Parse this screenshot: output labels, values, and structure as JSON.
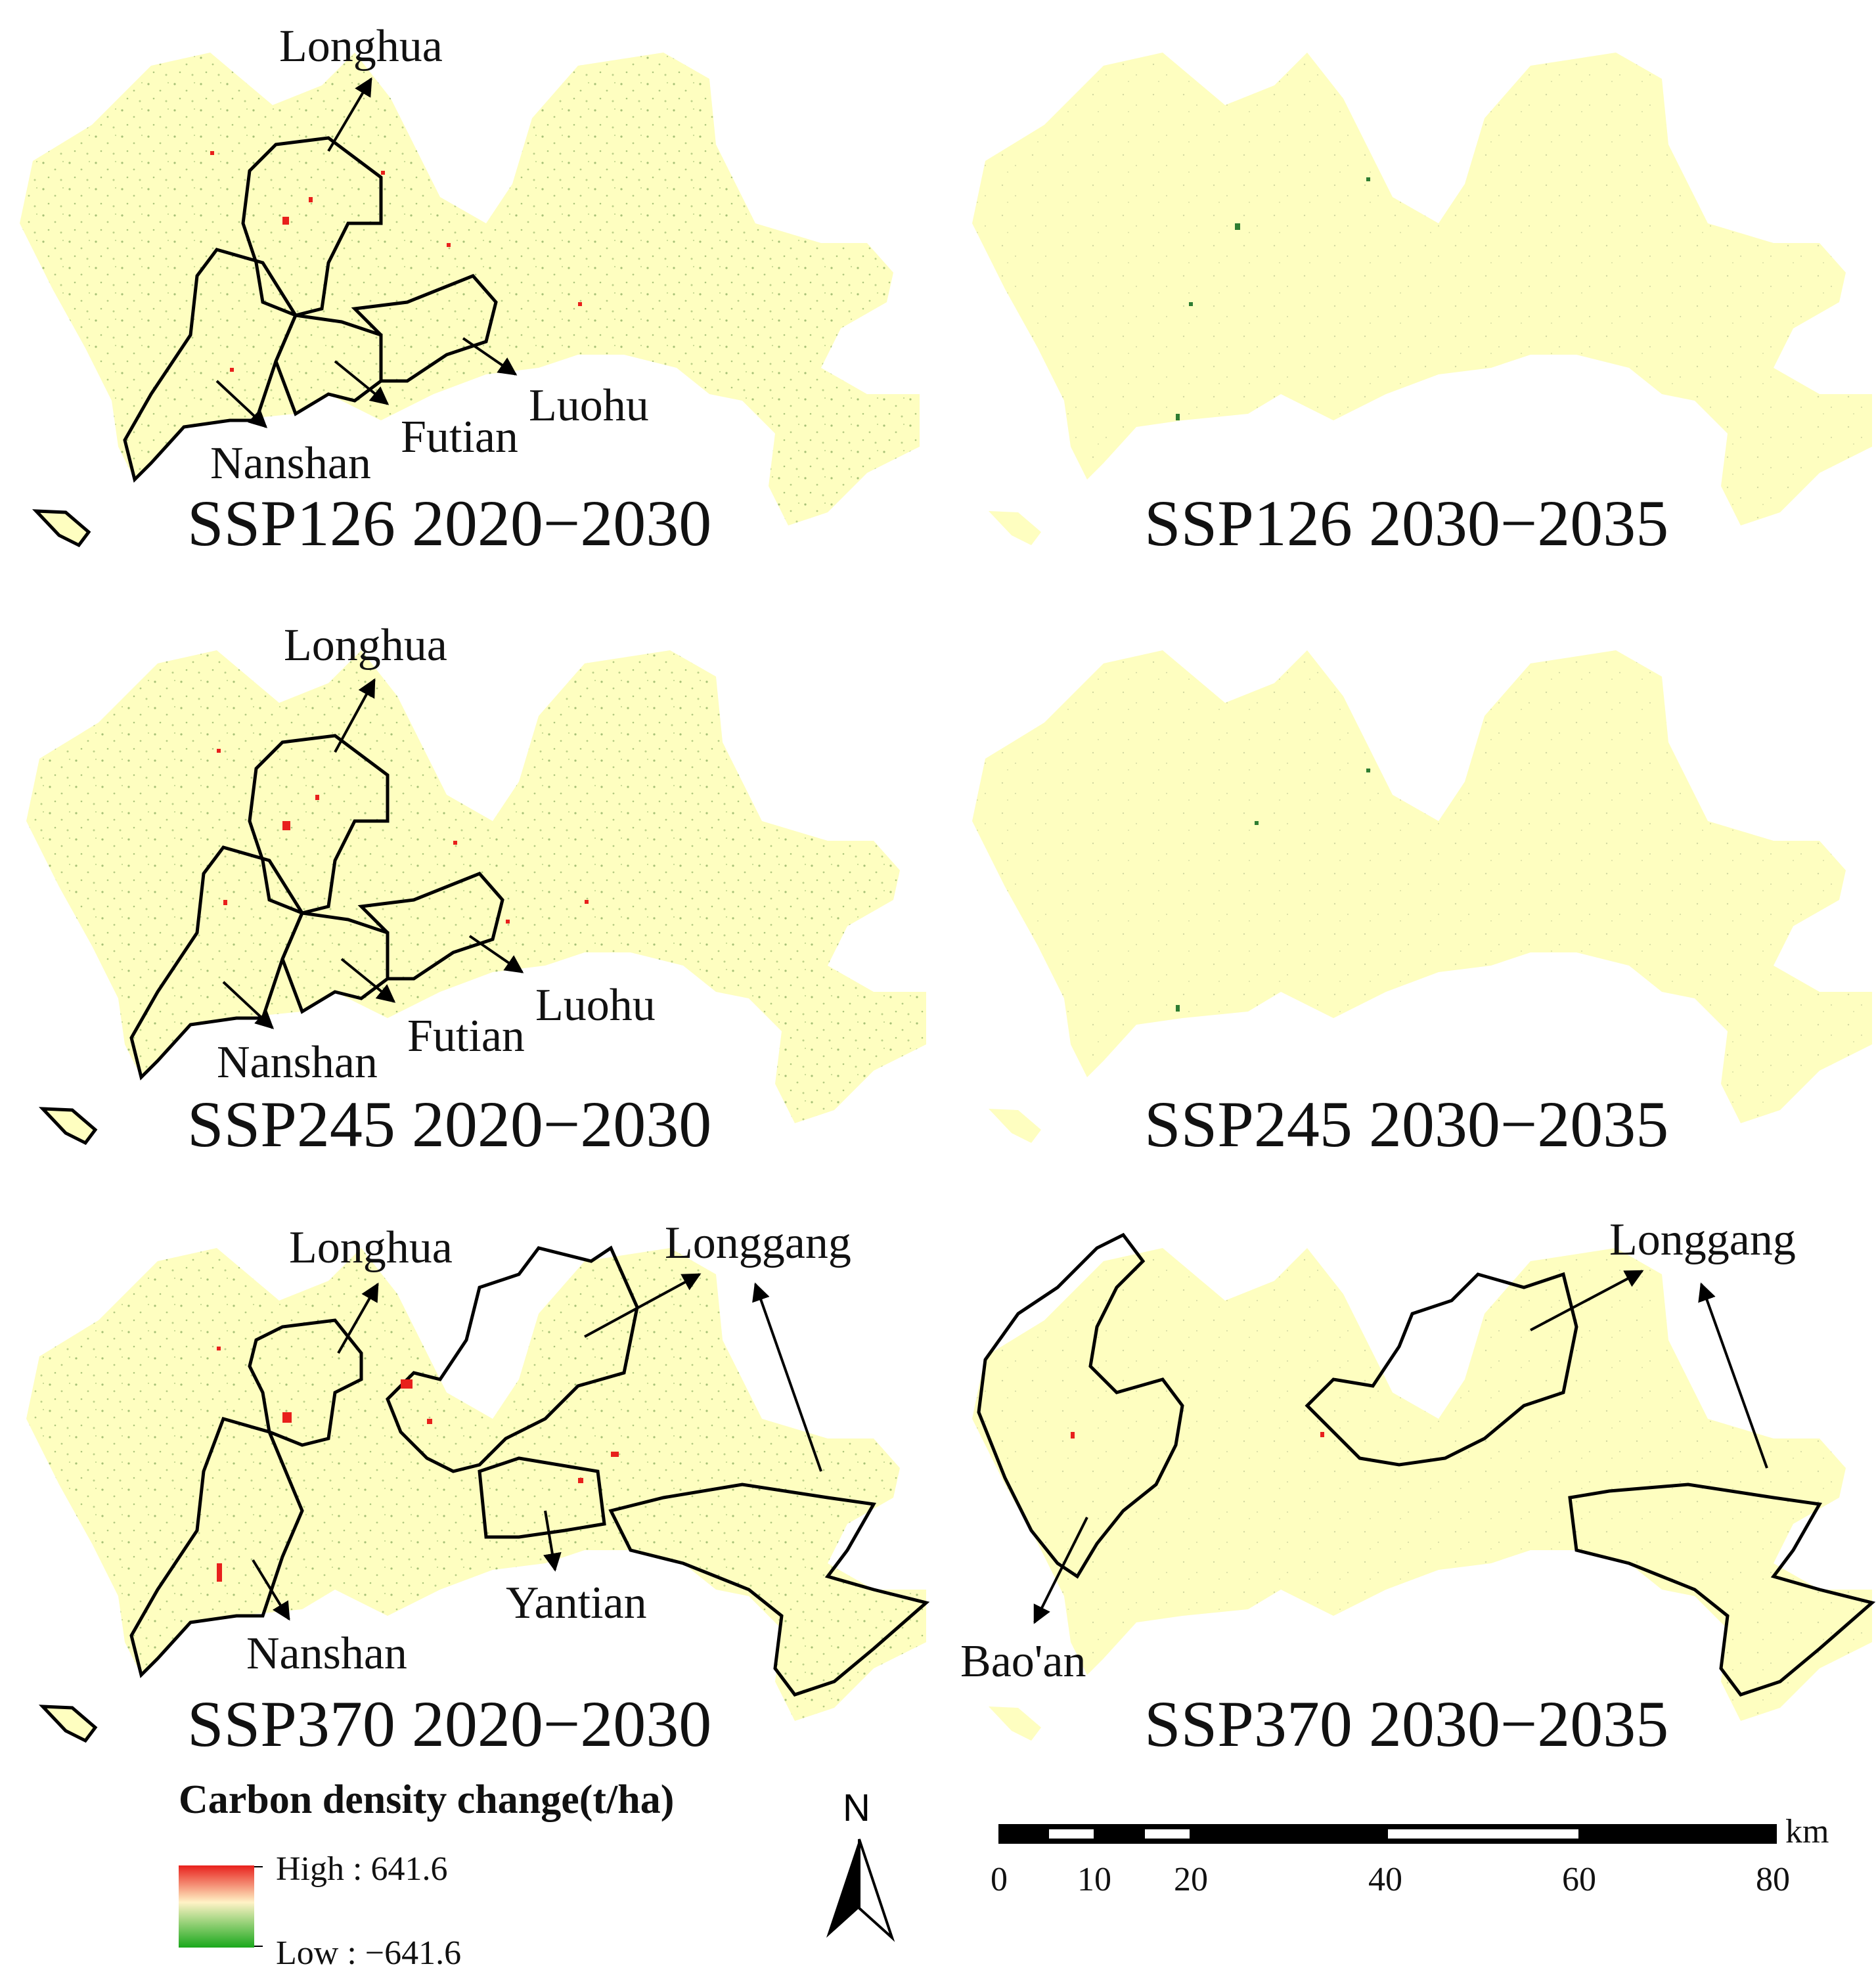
{
  "panels": [
    {
      "title": "SSP126 2020−2030",
      "districts": [
        "Longhua",
        "Luohu",
        "Futian",
        "Nanshan"
      ]
    },
    {
      "title": "SSP126 2030−2035",
      "districts": []
    },
    {
      "title": "SSP245 2020−2030",
      "districts": [
        "Longhua",
        "Luohu",
        "Futian",
        "Nanshan"
      ]
    },
    {
      "title": "SSP245 2030−2035",
      "districts": []
    },
    {
      "title": "SSP370 2020−2030",
      "districts": [
        "Longhua",
        "Longgang",
        "Yantian",
        "Nanshan"
      ]
    },
    {
      "title": "SSP370 2030−2035",
      "districts": [
        "Longgang",
        "Bao'an"
      ]
    }
  ],
  "legend": {
    "title": "Carbon density change(t/ha)",
    "high_label": "High : 641.6",
    "low_label": "Low : −641.6",
    "colors": {
      "high": "#e8201c",
      "mid": "#fff3c6",
      "low": "#19a81b"
    }
  },
  "north_arrow": {
    "label": "N"
  },
  "scale_bar": {
    "unit": "km",
    "ticks": [
      "0",
      "10",
      "20",
      "40",
      "60",
      "80"
    ]
  },
  "map_colors": {
    "land": "#fefec0",
    "vegetation_loss": "#2e7d32",
    "carbon_gain": "#e8201c",
    "boundary": "#000000"
  }
}
